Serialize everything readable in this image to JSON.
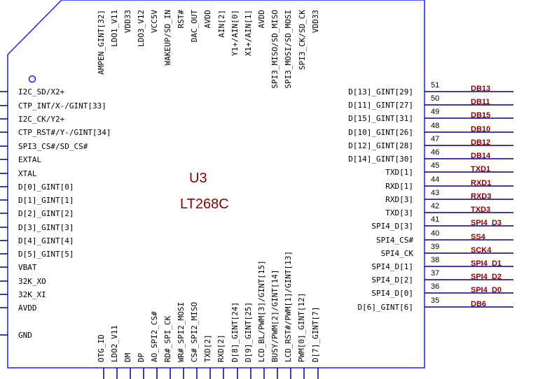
{
  "colors": {
    "body_outline": "#1a1aff",
    "pin_line": "#000080",
    "designator": "#8b0000",
    "net_label": "#8b0000",
    "text": "#000000"
  },
  "component": {
    "designator": "U3",
    "part": "LT268C"
  },
  "left_pins": [
    {
      "label": "I2C_SD/X2+"
    },
    {
      "label": "CTP_INT/X-/GINT[33]"
    },
    {
      "label": "I2C_CK/Y2+"
    },
    {
      "label": "CTP_RST#/Y-/GINT[34]"
    },
    {
      "label": "SPI3_CS#/SD_CS#"
    },
    {
      "label": "EXTAL"
    },
    {
      "label": "XTAL"
    },
    {
      "label": "D[0]_GINT[0]"
    },
    {
      "label": "D[1]_GINT[1]"
    },
    {
      "label": "D[2]_GINT[2]"
    },
    {
      "label": "D[3]_GINT[3]"
    },
    {
      "label": "D[4]_GINT[4]"
    },
    {
      "label": "D[5]_GINT[5]"
    },
    {
      "label": "VBAT"
    },
    {
      "label": "32K_XO"
    },
    {
      "label": "32K_XI"
    },
    {
      "label": "AVDD"
    },
    {
      "label": "GND"
    }
  ],
  "right_pins": [
    {
      "label": "D[13]_GINT[29]",
      "num": "51",
      "net": "DB13"
    },
    {
      "label": "D[11]_GINT[27]",
      "num": "50",
      "net": "DB11"
    },
    {
      "label": "D[15]_GINT[31]",
      "num": "49",
      "net": "DB15"
    },
    {
      "label": "D[10]_GINT[26]",
      "num": "48",
      "net": "DB10"
    },
    {
      "label": "D[12]_GINT[28]",
      "num": "47",
      "net": "DB12"
    },
    {
      "label": "D[14]_GINT[30]",
      "num": "46",
      "net": "DB14"
    },
    {
      "label": "TXD[1]",
      "num": "45",
      "net": "TXD1"
    },
    {
      "label": "RXD[1]",
      "num": "44",
      "net": "RXD1"
    },
    {
      "label": "RXD[3]",
      "num": "43",
      "net": "RXD3"
    },
    {
      "label": "TXD[3]",
      "num": "42",
      "net": "TXD3"
    },
    {
      "label": "SPI4_D[3]",
      "num": "41",
      "net": "SPI4_D3"
    },
    {
      "label": "SPI4_CS#",
      "num": "40",
      "net": "SS4"
    },
    {
      "label": "SPI4_CK",
      "num": "39",
      "net": "SCK4"
    },
    {
      "label": "SPI4_D[1]",
      "num": "38",
      "net": "SPI4_D1"
    },
    {
      "label": "SPI4_D[2]",
      "num": "37",
      "net": "SPI4_D2"
    },
    {
      "label": "SPI4_D[0]",
      "num": "36",
      "net": "SPI4_D0"
    },
    {
      "label": "D[6]_GINT[6]",
      "num": "35",
      "net": "DB6"
    }
  ],
  "top_pins": [
    {
      "label": "AMPEN_GINT[32]"
    },
    {
      "label": "LDO1_V11"
    },
    {
      "label": "VDD33"
    },
    {
      "label": "LDO3_V12"
    },
    {
      "label": "VCC5V"
    },
    {
      "label": "WAKEUP/SD_IN"
    },
    {
      "label": "RST#"
    },
    {
      "label": "DAC_OUT"
    },
    {
      "label": "AVDD"
    },
    {
      "label": "AIN[2]"
    },
    {
      "label": "Y1+/AIN[0]"
    },
    {
      "label": "X1+/AIN[1]"
    },
    {
      "label": "AVDD"
    },
    {
      "label": "SPI3_MISO/SD_MISO"
    },
    {
      "label": "SPI3_MOSI/SD_MOSI"
    },
    {
      "label": "SPI3_CK/SD_CK"
    },
    {
      "label": "VDD33"
    }
  ],
  "bottom_pins": [
    {
      "label": "OTG_ID"
    },
    {
      "label": "LDO2_V11"
    },
    {
      "label": "DM"
    },
    {
      "label": "DP"
    },
    {
      "label": "AO_SPI2_CS#"
    },
    {
      "label": "RD#_SPI_CK"
    },
    {
      "label": "WR#_SPI2_MOSI"
    },
    {
      "label": "CS#_SPI2_MISO"
    },
    {
      "label": "TXD[2]"
    },
    {
      "label": "RXD[2]"
    },
    {
      "label": "D[8]_GINT[24]"
    },
    {
      "label": "D[9]_GINT[25]"
    },
    {
      "label": "LCD_BL/PWM[3]/GINT[15]"
    },
    {
      "label": "BUSY/PWM[2]/GINT[14]"
    },
    {
      "label": "LCD_RST#/PWM[1]/GINT[13]"
    },
    {
      "label": "PWM[0]_GINT[12]"
    },
    {
      "label": "D[7]_GINT[7]"
    }
  ]
}
